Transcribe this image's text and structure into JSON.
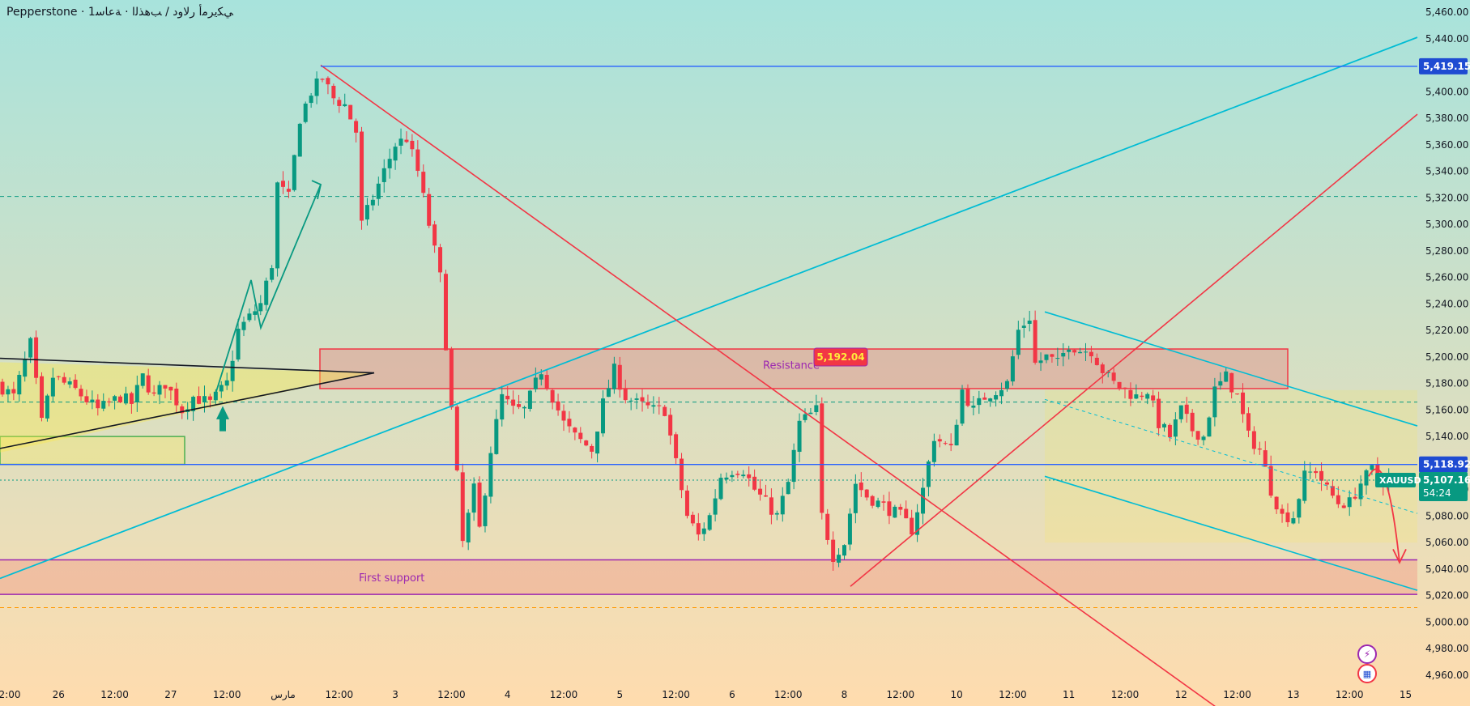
{
  "header": {
    "title": "Pepperstone · ﻲﻜﻳﺮﻣأ رﻻود / ﺐﻫﺬﻟا · ﺔﻋﺎﺳ1"
  },
  "colors": {
    "bull": "#089981",
    "bear": "#f23645",
    "cyan_line": "#00bcd4",
    "red_line": "#f23645",
    "blue_line": "#2962ff",
    "purple_zone": "#9c27b0",
    "bg_top": "#a8e3dc",
    "bg_bottom": "#ffdcae"
  },
  "chart_data": {
    "type": "candlestick",
    "symbol": "XAUUSD",
    "ylim": [
      4950,
      5470
    ],
    "y_ticks": [
      "5,460.00",
      "5,440.00",
      "5,420.00",
      "5,400.00",
      "5,380.00",
      "5,360.00",
      "5,340.00",
      "5,320.00",
      "5,300.00",
      "5,280.00",
      "5,260.00",
      "5,240.00",
      "5,220.00",
      "5,200.00",
      "5,180.00",
      "5,160.00",
      "5,140.00",
      "5,120.00",
      "5,100.00",
      "5,080.00",
      "5,060.00",
      "5,040.00",
      "5,020.00",
      "5,000.00",
      "4,980.00",
      "4,960.00"
    ],
    "y_tick_values": [
      5460,
      5440,
      5420,
      5400,
      5380,
      5360,
      5340,
      5320,
      5300,
      5280,
      5260,
      5240,
      5220,
      5200,
      5180,
      5160,
      5140,
      5120,
      5100,
      5080,
      5060,
      5040,
      5020,
      5000,
      4980,
      4960
    ],
    "x_ticks": [
      "2:00",
      "26",
      "12:00",
      "27",
      "12:00",
      "مارس",
      "12:00",
      "3",
      "12:00",
      "4",
      "12:00",
      "5",
      "12:00",
      "6",
      "12:00",
      "8",
      "12:00",
      "10",
      "12:00",
      "11",
      "12:00",
      "12",
      "12:00",
      "13",
      "12:00",
      "15"
    ],
    "x_tick_bars": [
      0,
      10,
      20,
      30,
      40,
      50,
      60,
      70,
      80,
      90,
      100,
      110,
      120,
      130,
      140,
      150,
      160,
      170,
      180,
      190,
      200,
      210,
      220,
      230,
      240,
      250
    ],
    "price_labels": {
      "top_level": "5,419.15",
      "mid_level": "5,118.92",
      "current": "5,107.16",
      "countdown": "54:24",
      "symbol_tag": "XAUUSD",
      "resistance_high": "5,192.04"
    },
    "annotations": {
      "resistance": "Resistance",
      "support": "First support"
    },
    "anchors": [
      [
        0,
        5180
      ],
      [
        3,
        5170
      ],
      [
        6,
        5210
      ],
      [
        8,
        5150
      ],
      [
        10,
        5185
      ],
      [
        14,
        5175
      ],
      [
        18,
        5160
      ],
      [
        22,
        5170
      ],
      [
        24,
        5165
      ],
      [
        26,
        5185
      ],
      [
        28,
        5170
      ],
      [
        30,
        5180
      ],
      [
        33,
        5160
      ],
      [
        35,
        5170
      ],
      [
        38,
        5165
      ],
      [
        41,
        5180
      ],
      [
        43,
        5220
      ],
      [
        45,
        5230
      ],
      [
        47,
        5240
      ],
      [
        49,
        5270
      ],
      [
        50,
        5330
      ],
      [
        52,
        5320
      ],
      [
        54,
        5380
      ],
      [
        56,
        5400
      ],
      [
        58,
        5410
      ],
      [
        60,
        5395
      ],
      [
        62,
        5390
      ],
      [
        64,
        5370
      ],
      [
        65,
        5300
      ],
      [
        67,
        5320
      ],
      [
        69,
        5340
      ],
      [
        71,
        5360
      ],
      [
        73,
        5365
      ],
      [
        75,
        5340
      ],
      [
        77,
        5300
      ],
      [
        79,
        5260
      ],
      [
        81,
        5160
      ],
      [
        83,
        5060
      ],
      [
        85,
        5100
      ],
      [
        86,
        5070
      ],
      [
        88,
        5130
      ],
      [
        90,
        5170
      ],
      [
        92,
        5160
      ],
      [
        94,
        5160
      ],
      [
        97,
        5190
      ],
      [
        99,
        5170
      ],
      [
        101,
        5150
      ],
      [
        103,
        5140
      ],
      [
        106,
        5130
      ],
      [
        108,
        5165
      ],
      [
        110,
        5190
      ],
      [
        112,
        5170
      ],
      [
        114,
        5165
      ],
      [
        117,
        5160
      ],
      [
        119,
        5160
      ],
      [
        121,
        5120
      ],
      [
        123,
        5080
      ],
      [
        125,
        5065
      ],
      [
        127,
        5080
      ],
      [
        129,
        5110
      ],
      [
        131,
        5115
      ],
      [
        133,
        5115
      ],
      [
        135,
        5100
      ],
      [
        137,
        5090
      ],
      [
        139,
        5080
      ],
      [
        141,
        5105
      ],
      [
        143,
        5150
      ],
      [
        146,
        5160
      ],
      [
        147,
        5080
      ],
      [
        149,
        5050
      ],
      [
        151,
        5060
      ],
      [
        153,
        5105
      ],
      [
        155,
        5095
      ],
      [
        157,
        5090
      ],
      [
        159,
        5085
      ],
      [
        161,
        5080
      ],
      [
        163,
        5070
      ],
      [
        165,
        5100
      ],
      [
        167,
        5140
      ],
      [
        170,
        5130
      ],
      [
        172,
        5175
      ],
      [
        174,
        5160
      ],
      [
        176,
        5170
      ],
      [
        178,
        5175
      ],
      [
        180,
        5180
      ],
      [
        182,
        5220
      ],
      [
        184,
        5230
      ],
      [
        185,
        5195
      ],
      [
        187,
        5200
      ],
      [
        189,
        5195
      ],
      [
        191,
        5210
      ],
      [
        193,
        5205
      ],
      [
        195,
        5205
      ],
      [
        197,
        5190
      ],
      [
        199,
        5180
      ],
      [
        201,
        5175
      ],
      [
        203,
        5170
      ],
      [
        205,
        5175
      ],
      [
        207,
        5150
      ],
      [
        209,
        5140
      ],
      [
        211,
        5160
      ],
      [
        213,
        5145
      ],
      [
        215,
        5140
      ],
      [
        217,
        5175
      ],
      [
        219,
        5185
      ],
      [
        221,
        5170
      ],
      [
        223,
        5140
      ],
      [
        225,
        5130
      ],
      [
        227,
        5100
      ],
      [
        229,
        5080
      ],
      [
        231,
        5080
      ],
      [
        233,
        5110
      ],
      [
        235,
        5115
      ],
      [
        237,
        5100
      ],
      [
        239,
        5090
      ],
      [
        241,
        5090
      ],
      [
        243,
        5105
      ],
      [
        245,
        5115
      ],
      [
        246,
        5108
      ],
      [
        247,
        5107.16
      ]
    ],
    "candle_count": 248
  },
  "bottom_icons": [
    "lightning-icon",
    "flag-icon"
  ]
}
